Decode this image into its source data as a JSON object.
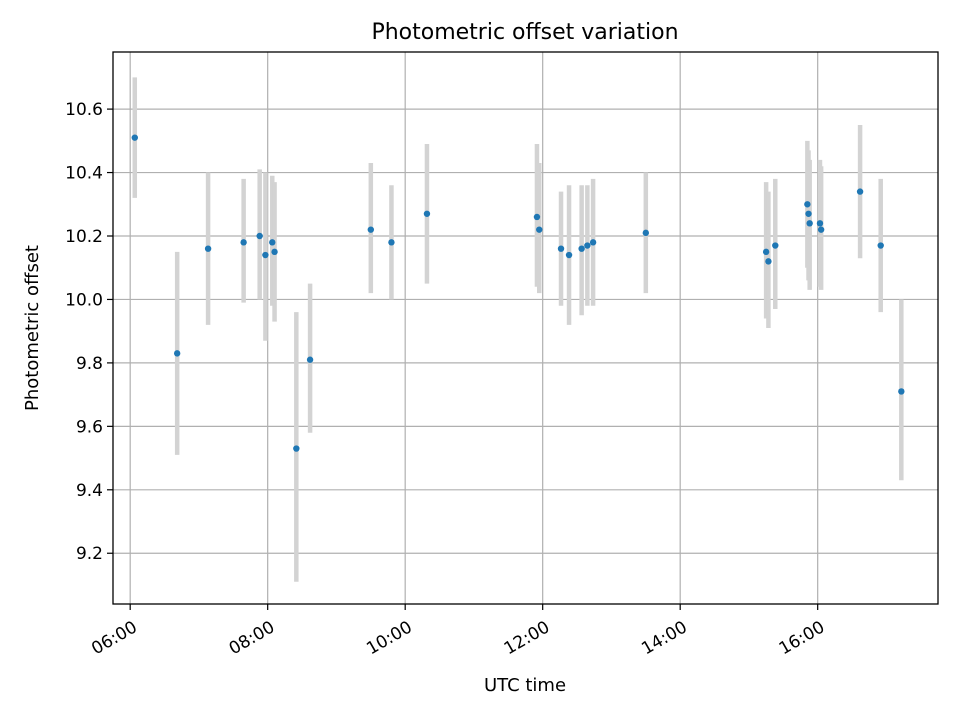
{
  "chart_data": {
    "type": "scatter",
    "title": "Photometric offset variation",
    "xlabel": "UTC time",
    "ylabel": "Photometric offset",
    "xlim": [
      "05:45",
      "17:45"
    ],
    "ylim": [
      9.04,
      10.78
    ],
    "xticks": [
      "06:00",
      "08:00",
      "10:00",
      "12:00",
      "14:00",
      "16:00"
    ],
    "yticks": [
      "9.2",
      "9.4",
      "9.6",
      "9.8",
      "10.0",
      "10.2",
      "10.4",
      "10.6"
    ],
    "grid": true,
    "point_color": "#1f77b4",
    "errorbar_color": "#d3d3d3",
    "series": [
      {
        "points": [
          {
            "x": "06:04",
            "y": 10.51,
            "lo": 10.32,
            "hi": 10.7
          },
          {
            "x": "06:41",
            "y": 9.83,
            "lo": 9.51,
            "hi": 10.15
          },
          {
            "x": "07:08",
            "y": 10.16,
            "lo": 9.92,
            "hi": 10.4
          },
          {
            "x": "07:39",
            "y": 10.18,
            "lo": 9.99,
            "hi": 10.38
          },
          {
            "x": "07:53",
            "y": 10.2,
            "lo": 10.0,
            "hi": 10.41
          },
          {
            "x": "07:58",
            "y": 10.14,
            "lo": 9.87,
            "hi": 10.4
          },
          {
            "x": "08:04",
            "y": 10.18,
            "lo": 9.98,
            "hi": 10.39
          },
          {
            "x": "08:06",
            "y": 10.15,
            "lo": 9.93,
            "hi": 10.37
          },
          {
            "x": "08:25",
            "y": 9.53,
            "lo": 9.11,
            "hi": 9.96
          },
          {
            "x": "08:37",
            "y": 9.81,
            "lo": 9.58,
            "hi": 10.05
          },
          {
            "x": "09:30",
            "y": 10.22,
            "lo": 10.02,
            "hi": 10.43
          },
          {
            "x": "09:48",
            "y": 10.18,
            "lo": 10.0,
            "hi": 10.36
          },
          {
            "x": "10:19",
            "y": 10.27,
            "lo": 10.05,
            "hi": 10.49
          },
          {
            "x": "11:55",
            "y": 10.26,
            "lo": 10.04,
            "hi": 10.49
          },
          {
            "x": "11:57",
            "y": 10.22,
            "lo": 10.02,
            "hi": 10.43
          },
          {
            "x": "12:16",
            "y": 10.16,
            "lo": 9.98,
            "hi": 10.34
          },
          {
            "x": "12:23",
            "y": 10.14,
            "lo": 9.92,
            "hi": 10.36
          },
          {
            "x": "12:34",
            "y": 10.16,
            "lo": 9.95,
            "hi": 10.36
          },
          {
            "x": "12:39",
            "y": 10.17,
            "lo": 9.98,
            "hi": 10.36
          },
          {
            "x": "12:44",
            "y": 10.18,
            "lo": 9.98,
            "hi": 10.38
          },
          {
            "x": "13:30",
            "y": 10.21,
            "lo": 10.02,
            "hi": 10.4
          },
          {
            "x": "15:15",
            "y": 10.15,
            "lo": 9.94,
            "hi": 10.37
          },
          {
            "x": "15:17",
            "y": 10.12,
            "lo": 9.91,
            "hi": 10.34
          },
          {
            "x": "15:23",
            "y": 10.17,
            "lo": 9.97,
            "hi": 10.38
          },
          {
            "x": "15:51",
            "y": 10.3,
            "lo": 10.1,
            "hi": 10.5
          },
          {
            "x": "15:52",
            "y": 10.27,
            "lo": 10.06,
            "hi": 10.47
          },
          {
            "x": "15:53",
            "y": 10.24,
            "lo": 10.03,
            "hi": 10.44
          },
          {
            "x": "16:02",
            "y": 10.24,
            "lo": 10.04,
            "hi": 10.44
          },
          {
            "x": "16:03",
            "y": 10.22,
            "lo": 10.03,
            "hi": 10.42
          },
          {
            "x": "16:37",
            "y": 10.34,
            "lo": 10.13,
            "hi": 10.55
          },
          {
            "x": "16:55",
            "y": 10.17,
            "lo": 9.96,
            "hi": 10.38
          },
          {
            "x": "17:13",
            "y": 9.71,
            "lo": 9.43,
            "hi": 10.0
          }
        ]
      }
    ]
  }
}
